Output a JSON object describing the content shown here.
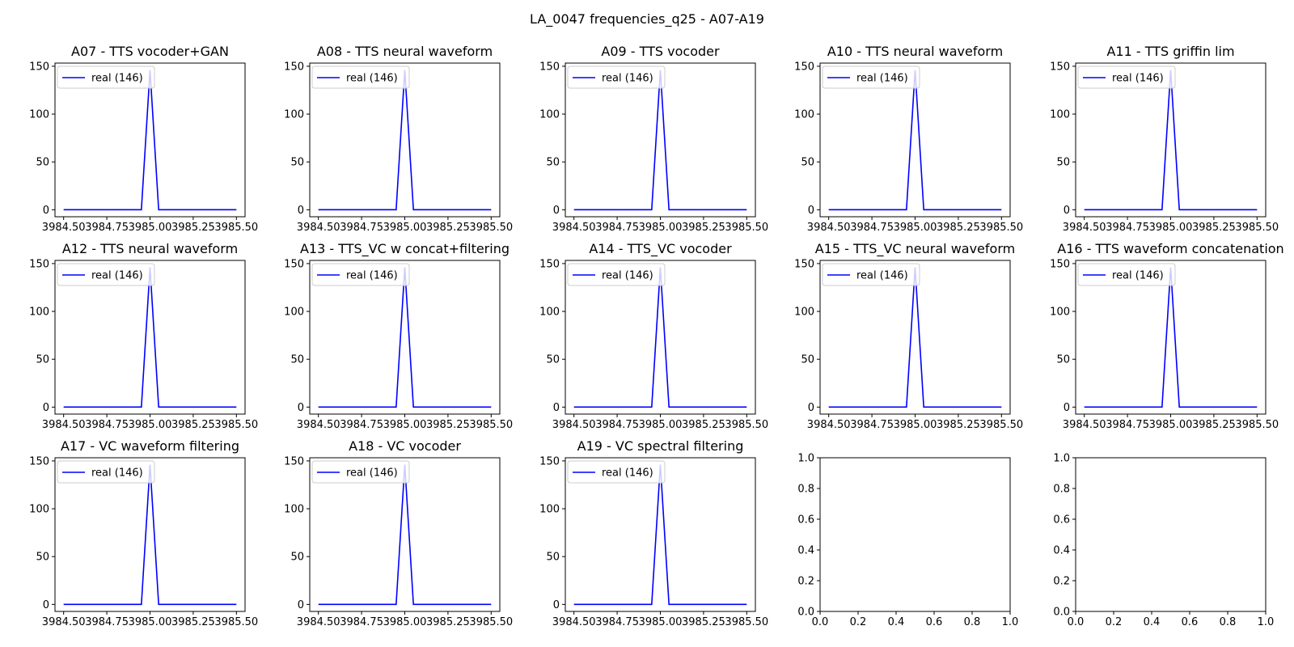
{
  "figure": {
    "title": "LA_0047 frequencies_q25 - A07-A19"
  },
  "style": {
    "series_color": "#0000ff",
    "axis_color": "#000000",
    "legend_border": "#cccccc"
  },
  "chart_data": [
    {
      "type": "line",
      "title": "A07 - TTS vocoder+GAN",
      "xlim": [
        3984.45,
        3985.55
      ],
      "ylim": [
        -7.3,
        153.3
      ],
      "xticks": [
        "3984.50",
        "3984.75",
        "3985.00",
        "3985.25",
        "3985.50"
      ],
      "yticks": [
        "0",
        "50",
        "100",
        "150"
      ],
      "legend_position": "upper-left",
      "series": [
        {
          "name": "real (146)",
          "x": [
            3984.5,
            3984.95,
            3985.0,
            3985.05,
            3985.5
          ],
          "y": [
            0,
            0,
            146,
            0,
            0
          ]
        }
      ]
    },
    {
      "type": "line",
      "title": "A08 - TTS neural waveform",
      "xlim": [
        3984.45,
        3985.55
      ],
      "ylim": [
        -7.3,
        153.3
      ],
      "xticks": [
        "3984.50",
        "3984.75",
        "3985.00",
        "3985.25",
        "3985.50"
      ],
      "yticks": [
        "0",
        "50",
        "100",
        "150"
      ],
      "legend_position": "upper-left",
      "series": [
        {
          "name": "real (146)",
          "x": [
            3984.5,
            3984.95,
            3985.0,
            3985.05,
            3985.5
          ],
          "y": [
            0,
            0,
            146,
            0,
            0
          ]
        }
      ]
    },
    {
      "type": "line",
      "title": "A09 - TTS vocoder",
      "xlim": [
        3984.45,
        3985.55
      ],
      "ylim": [
        -7.3,
        153.3
      ],
      "xticks": [
        "3984.50",
        "3984.75",
        "3985.00",
        "3985.25",
        "3985.50"
      ],
      "yticks": [
        "0",
        "50",
        "100",
        "150"
      ],
      "legend_position": "upper-left",
      "series": [
        {
          "name": "real (146)",
          "x": [
            3984.5,
            3984.95,
            3985.0,
            3985.05,
            3985.5
          ],
          "y": [
            0,
            0,
            146,
            0,
            0
          ]
        }
      ]
    },
    {
      "type": "line",
      "title": "A10 - TTS neural waveform",
      "xlim": [
        3984.45,
        3985.55
      ],
      "ylim": [
        -7.3,
        153.3
      ],
      "xticks": [
        "3984.50",
        "3984.75",
        "3985.00",
        "3985.25",
        "3985.50"
      ],
      "yticks": [
        "0",
        "50",
        "100",
        "150"
      ],
      "legend_position": "upper-left",
      "series": [
        {
          "name": "real (146)",
          "x": [
            3984.5,
            3984.95,
            3985.0,
            3985.05,
            3985.5
          ],
          "y": [
            0,
            0,
            146,
            0,
            0
          ]
        }
      ]
    },
    {
      "type": "line",
      "title": "A11 - TTS griffin lim",
      "xlim": [
        3984.45,
        3985.55
      ],
      "ylim": [
        -7.3,
        153.3
      ],
      "xticks": [
        "3984.50",
        "3984.75",
        "3985.00",
        "3985.25",
        "3985.50"
      ],
      "yticks": [
        "0",
        "50",
        "100",
        "150"
      ],
      "legend_position": "upper-left",
      "series": [
        {
          "name": "real (146)",
          "x": [
            3984.5,
            3984.95,
            3985.0,
            3985.05,
            3985.5
          ],
          "y": [
            0,
            0,
            146,
            0,
            0
          ]
        }
      ]
    },
    {
      "type": "line",
      "title": "A12 - TTS neural waveform",
      "xlim": [
        3984.45,
        3985.55
      ],
      "ylim": [
        -7.3,
        153.3
      ],
      "xticks": [
        "3984.50",
        "3984.75",
        "3985.00",
        "3985.25",
        "3985.50"
      ],
      "yticks": [
        "0",
        "50",
        "100",
        "150"
      ],
      "legend_position": "upper-left",
      "series": [
        {
          "name": "real (146)",
          "x": [
            3984.5,
            3984.95,
            3985.0,
            3985.05,
            3985.5
          ],
          "y": [
            0,
            0,
            146,
            0,
            0
          ]
        }
      ]
    },
    {
      "type": "line",
      "title": "A13 - TTS_VC w concat+filtering",
      "xlim": [
        3984.45,
        3985.55
      ],
      "ylim": [
        -7.3,
        153.3
      ],
      "xticks": [
        "3984.50",
        "3984.75",
        "3985.00",
        "3985.25",
        "3985.50"
      ],
      "yticks": [
        "0",
        "50",
        "100",
        "150"
      ],
      "legend_position": "upper-left",
      "series": [
        {
          "name": "real (146)",
          "x": [
            3984.5,
            3984.95,
            3985.0,
            3985.05,
            3985.5
          ],
          "y": [
            0,
            0,
            146,
            0,
            0
          ]
        }
      ]
    },
    {
      "type": "line",
      "title": "A14 - TTS_VC vocoder",
      "xlim": [
        3984.45,
        3985.55
      ],
      "ylim": [
        -7.3,
        153.3
      ],
      "xticks": [
        "3984.50",
        "3984.75",
        "3985.00",
        "3985.25",
        "3985.50"
      ],
      "yticks": [
        "0",
        "50",
        "100",
        "150"
      ],
      "legend_position": "upper-left",
      "series": [
        {
          "name": "real (146)",
          "x": [
            3984.5,
            3984.95,
            3985.0,
            3985.05,
            3985.5
          ],
          "y": [
            0,
            0,
            146,
            0,
            0
          ]
        }
      ]
    },
    {
      "type": "line",
      "title": "A15 - TTS_VC neural waveform",
      "xlim": [
        3984.45,
        3985.55
      ],
      "ylim": [
        -7.3,
        153.3
      ],
      "xticks": [
        "3984.50",
        "3984.75",
        "3985.00",
        "3985.25",
        "3985.50"
      ],
      "yticks": [
        "0",
        "50",
        "100",
        "150"
      ],
      "legend_position": "upper-left",
      "series": [
        {
          "name": "real (146)",
          "x": [
            3984.5,
            3984.95,
            3985.0,
            3985.05,
            3985.5
          ],
          "y": [
            0,
            0,
            146,
            0,
            0
          ]
        }
      ]
    },
    {
      "type": "line",
      "title": "A16 - TTS waveform concatenation",
      "xlim": [
        3984.45,
        3985.55
      ],
      "ylim": [
        -7.3,
        153.3
      ],
      "xticks": [
        "3984.50",
        "3984.75",
        "3985.00",
        "3985.25",
        "3985.50"
      ],
      "yticks": [
        "0",
        "50",
        "100",
        "150"
      ],
      "legend_position": "upper-left",
      "series": [
        {
          "name": "real (146)",
          "x": [
            3984.5,
            3984.95,
            3985.0,
            3985.05,
            3985.5
          ],
          "y": [
            0,
            0,
            146,
            0,
            0
          ]
        }
      ]
    },
    {
      "type": "line",
      "title": "A17 - VC waveform filtering",
      "xlim": [
        3984.45,
        3985.55
      ],
      "ylim": [
        -7.3,
        153.3
      ],
      "xticks": [
        "3984.50",
        "3984.75",
        "3985.00",
        "3985.25",
        "3985.50"
      ],
      "yticks": [
        "0",
        "50",
        "100",
        "150"
      ],
      "legend_position": "upper-left",
      "series": [
        {
          "name": "real (146)",
          "x": [
            3984.5,
            3984.95,
            3985.0,
            3985.05,
            3985.5
          ],
          "y": [
            0,
            0,
            146,
            0,
            0
          ]
        }
      ]
    },
    {
      "type": "line",
      "title": "A18 - VC vocoder",
      "xlim": [
        3984.45,
        3985.55
      ],
      "ylim": [
        -7.3,
        153.3
      ],
      "xticks": [
        "3984.50",
        "3984.75",
        "3985.00",
        "3985.25",
        "3985.50"
      ],
      "yticks": [
        "0",
        "50",
        "100",
        "150"
      ],
      "legend_position": "upper-left",
      "series": [
        {
          "name": "real (146)",
          "x": [
            3984.5,
            3984.95,
            3985.0,
            3985.05,
            3985.5
          ],
          "y": [
            0,
            0,
            146,
            0,
            0
          ]
        }
      ]
    },
    {
      "type": "line",
      "title": "A19 - VC spectral filtering",
      "xlim": [
        3984.45,
        3985.55
      ],
      "ylim": [
        -7.3,
        153.3
      ],
      "xticks": [
        "3984.50",
        "3984.75",
        "3985.00",
        "3985.25",
        "3985.50"
      ],
      "yticks": [
        "0",
        "50",
        "100",
        "150"
      ],
      "legend_position": "upper-left",
      "series": [
        {
          "name": "real (146)",
          "x": [
            3984.5,
            3984.95,
            3985.0,
            3985.05,
            3985.5
          ],
          "y": [
            0,
            0,
            146,
            0,
            0
          ]
        }
      ]
    },
    {
      "type": "line",
      "title": "",
      "xlim": [
        0,
        1
      ],
      "ylim": [
        0,
        1
      ],
      "xticks": [
        "0.0",
        "0.2",
        "0.4",
        "0.6",
        "0.8",
        "1.0"
      ],
      "yticks": [
        "0.0",
        "0.2",
        "0.4",
        "0.6",
        "0.8",
        "1.0"
      ],
      "series": []
    },
    {
      "type": "line",
      "title": "",
      "xlim": [
        0,
        1
      ],
      "ylim": [
        0,
        1
      ],
      "xticks": [
        "0.0",
        "0.2",
        "0.4",
        "0.6",
        "0.8",
        "1.0"
      ],
      "yticks": [
        "0.0",
        "0.2",
        "0.4",
        "0.6",
        "0.8",
        "1.0"
      ],
      "series": []
    }
  ]
}
